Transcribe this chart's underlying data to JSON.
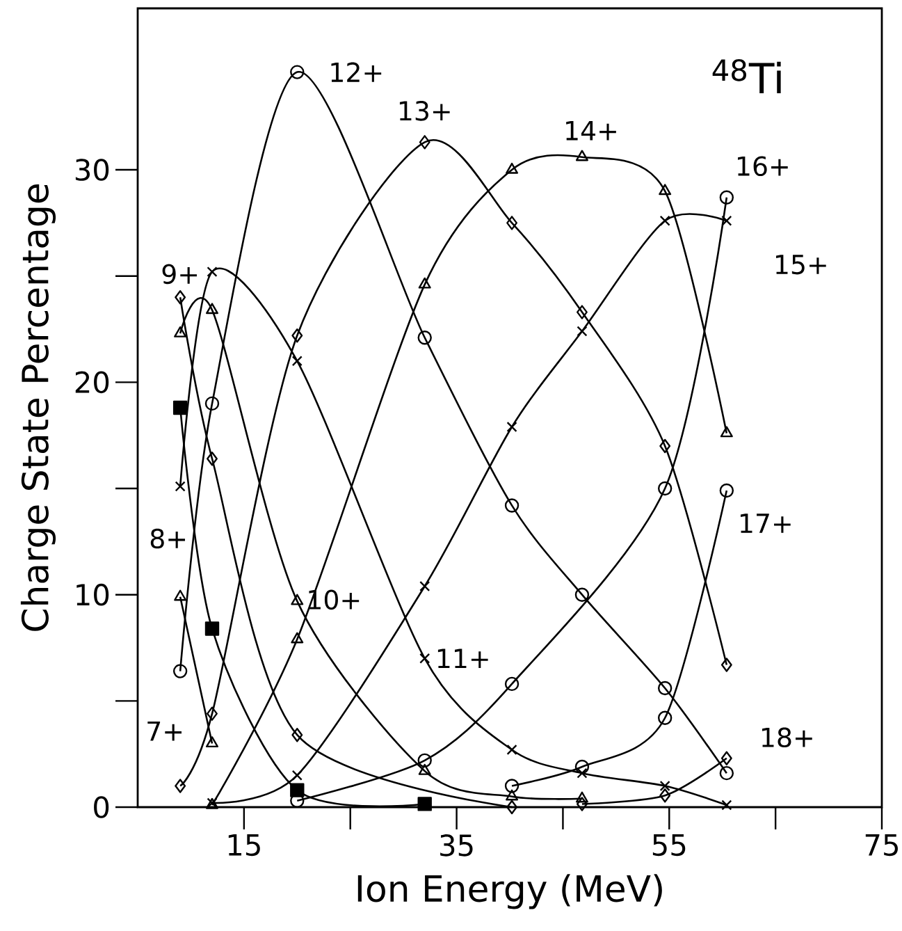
{
  "chart_data": {
    "type": "line",
    "xlabel": "Ion Energy (MeV)",
    "ylabel": "Charge State Percentage",
    "annotations": [
      "$^{48}$Ti"
    ],
    "xlim": [
      5,
      75
    ],
    "ylim": [
      0,
      37.6
    ],
    "xticks": [
      15,
      35,
      55,
      75
    ],
    "yticks": [
      0,
      10,
      20,
      30
    ],
    "line_style": "solid",
    "series": [
      {
        "name": "7+",
        "color": "#000000",
        "marker": "triangle",
        "x": [
          9,
          12
        ],
        "values": [
          9.9,
          3.0
        ]
      },
      {
        "name": "8+",
        "color": "#000000",
        "marker": "square",
        "x": [
          9,
          12,
          20,
          32
        ],
        "values": [
          18.8,
          8.4,
          0.8,
          0.15
        ]
      },
      {
        "name": "9+",
        "color": "#000000",
        "marker": "diamond",
        "x": [
          9,
          12,
          20,
          40.2
        ],
        "values": [
          24.0,
          16.4,
          3.4,
          0
        ]
      },
      {
        "name": "10+",
        "color": "#000000",
        "marker": "triangle",
        "x": [
          9,
          12,
          20,
          32,
          40.2,
          46.8
        ],
        "values": [
          22.3,
          23.4,
          9.7,
          1.7,
          0.5,
          0.4
        ]
      },
      {
        "name": "11+",
        "color": "#000000",
        "marker": "cross",
        "x": [
          9,
          12,
          20,
          32,
          40.2,
          46.8,
          54.6,
          60.4
        ],
        "values": [
          15.1,
          25.2,
          21.0,
          7.0,
          2.7,
          1.6,
          1.0,
          0.1
        ]
      },
      {
        "name": "12+",
        "color": "#000000",
        "marker": "circle",
        "x": [
          9,
          12,
          20,
          32,
          40.2,
          46.8,
          54.6,
          60.4
        ],
        "values": [
          6.4,
          19.0,
          34.6,
          22.1,
          14.2,
          10.0,
          5.6,
          1.6
        ]
      },
      {
        "name": "13+",
        "color": "#000000",
        "marker": "diamond",
        "x": [
          9,
          12,
          20,
          32,
          40.2,
          46.8,
          54.6,
          60.4
        ],
        "values": [
          1.0,
          4.4,
          22.2,
          31.3,
          27.5,
          23.3,
          17.0,
          6.7
        ]
      },
      {
        "name": "14+",
        "color": "#000000",
        "marker": "triangle",
        "x": [
          12,
          20,
          32,
          40.2,
          46.8,
          54.6,
          60.4
        ],
        "values": [
          0.1,
          7.9,
          24.6,
          30.0,
          30.6,
          29.0,
          17.6
        ]
      },
      {
        "name": "15+",
        "color": "#000000",
        "marker": "cross",
        "x": [
          12,
          20,
          32,
          40.2,
          46.8,
          54.6,
          60.4
        ],
        "values": [
          0.2,
          1.5,
          10.4,
          17.9,
          22.4,
          27.6,
          27.6
        ]
      },
      {
        "name": "16+",
        "color": "#000000",
        "marker": "circle",
        "x": [
          20,
          32,
          40.2,
          54.6,
          60.4
        ],
        "values": [
          0.3,
          2.2,
          5.8,
          15.0,
          28.7
        ]
      },
      {
        "name": "17+",
        "color": "#000000",
        "marker": "circle",
        "x": [
          40.2,
          46.8,
          54.6,
          60.4
        ],
        "values": [
          1.0,
          1.9,
          4.2,
          14.9
        ]
      },
      {
        "name": "18+",
        "color": "#000000",
        "marker": "diamond",
        "x": [
          46.8,
          54.6,
          60.4
        ],
        "values": [
          0.15,
          0.55,
          2.3
        ]
      }
    ]
  }
}
